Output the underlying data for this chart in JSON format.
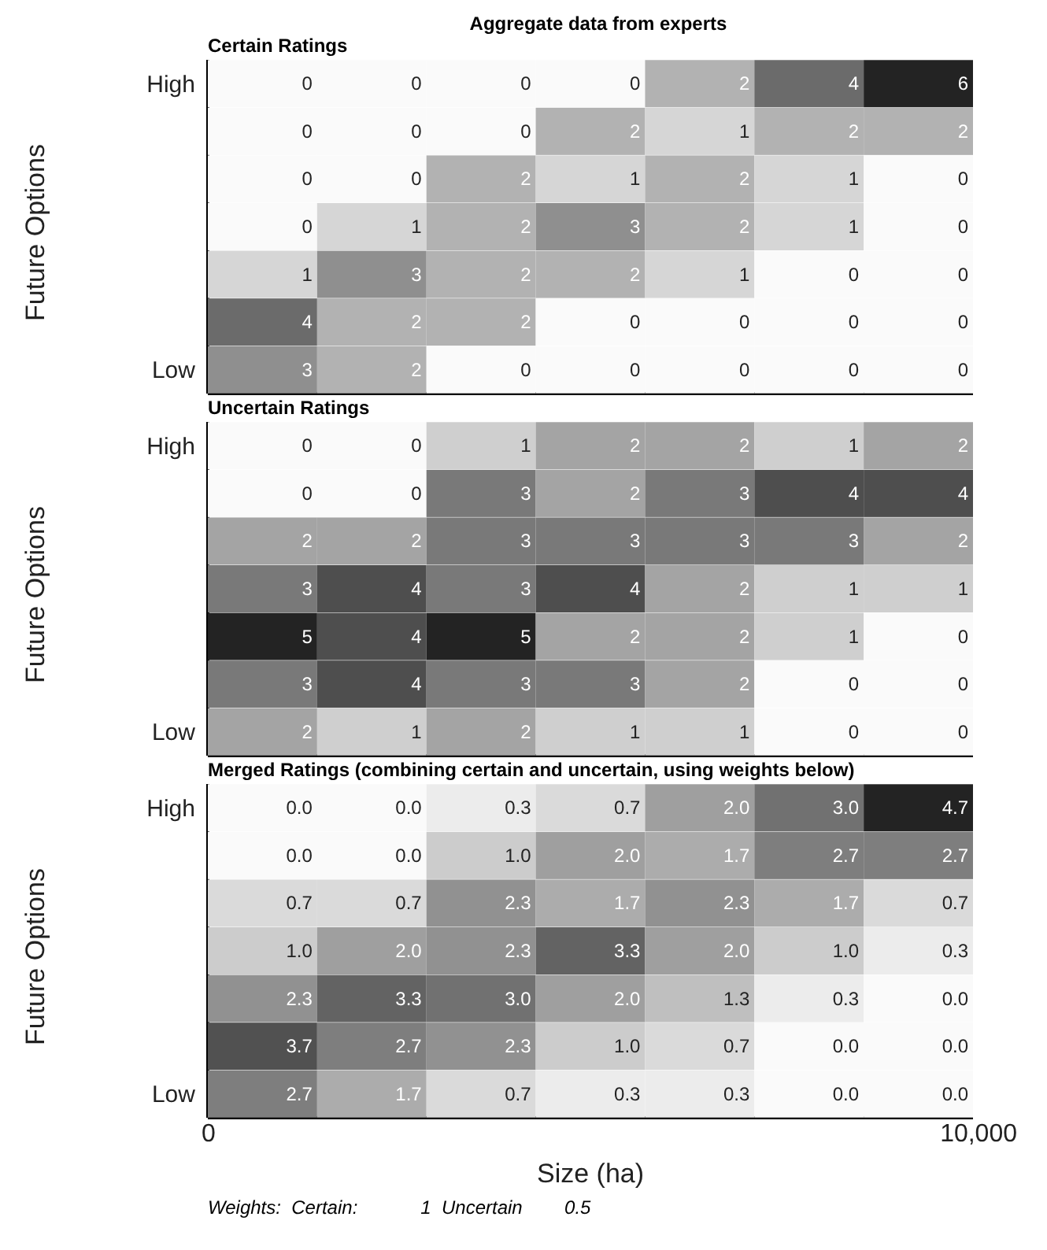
{
  "chart_data": [
    {
      "type": "heatmap",
      "title": "Aggregate data from experts",
      "subtitle": "Certain Ratings",
      "ylabel": "Future Options",
      "categories": [
        null,
        null,
        null,
        null,
        null,
        null,
        null
      ],
      "y_categories": [
        "High",
        null,
        null,
        null,
        null,
        null,
        "Low"
      ],
      "data_labels": true,
      "cells": [
        [
          0,
          0,
          0,
          0,
          2,
          4,
          6
        ],
        [
          0,
          0,
          0,
          2,
          1,
          2,
          2
        ],
        [
          0,
          0,
          2,
          1,
          2,
          1,
          0
        ],
        [
          0,
          1,
          2,
          3,
          2,
          1,
          0
        ],
        [
          1,
          3,
          2,
          2,
          1,
          0,
          0
        ],
        [
          4,
          2,
          2,
          0,
          0,
          0,
          0
        ],
        [
          3,
          2,
          0,
          0,
          0,
          0,
          0
        ]
      ]
    },
    {
      "type": "heatmap",
      "title": "Uncertain Ratings",
      "ylabel": "Future Options",
      "categories": [
        null,
        null,
        null,
        null,
        null,
        null,
        null
      ],
      "y_categories": [
        "High",
        null,
        null,
        null,
        null,
        null,
        "Low"
      ],
      "data_labels": true,
      "cells": [
        [
          0,
          0,
          1,
          2,
          2,
          1,
          2
        ],
        [
          0,
          0,
          3,
          2,
          3,
          4,
          4
        ],
        [
          2,
          2,
          3,
          3,
          3,
          3,
          2
        ],
        [
          3,
          4,
          3,
          4,
          2,
          1,
          1
        ],
        [
          5,
          4,
          5,
          2,
          2,
          1,
          0
        ],
        [
          3,
          4,
          3,
          3,
          2,
          0,
          0
        ],
        [
          2,
          1,
          2,
          1,
          1,
          0,
          0
        ]
      ]
    },
    {
      "type": "heatmap",
      "title": "Merged Ratings (combining certain and uncertain, using weights below)",
      "ylabel": "Future Options",
      "xlabel": "Size (ha)",
      "categories": [
        null,
        null,
        null,
        null,
        null,
        null,
        null
      ],
      "y_categories": [
        "High",
        null,
        null,
        null,
        null,
        null,
        "Low"
      ],
      "data_labels": true,
      "cells": [
        [
          0,
          0,
          0.3,
          0.7,
          2,
          3,
          4.7
        ],
        [
          0,
          0,
          1,
          2,
          1.7,
          2.7,
          2.7
        ],
        [
          0.7,
          0.7,
          2.3,
          1.7,
          2.3,
          1.7,
          0.7
        ],
        [
          1,
          2,
          2.3,
          3.3,
          2,
          1,
          0.3
        ],
        [
          2.3,
          3.3,
          3,
          2,
          1.3,
          0.3,
          0
        ],
        [
          3.7,
          2.7,
          2.3,
          1,
          0.7,
          0,
          0
        ],
        [
          2.7,
          1.7,
          0.7,
          0.3,
          0.3,
          0,
          0
        ]
      ],
      "cell_labels": [
        [
          "0.0",
          "0.0",
          "0.3",
          "0.7",
          "2.0",
          "3.0",
          "4.7"
        ],
        [
          "0.0",
          "0.0",
          "1.0",
          "2.0",
          "1.7",
          "2.7",
          "2.7"
        ],
        [
          "0.7",
          "0.7",
          "2.3",
          "1.7",
          "2.3",
          "1.7",
          "0.7"
        ],
        [
          "1.0",
          "2.0",
          "2.3",
          "3.3",
          "2.0",
          "1.0",
          "0.3"
        ],
        [
          "2.3",
          "3.3",
          "3.0",
          "2.0",
          "1.3",
          "0.3",
          "0.0"
        ],
        [
          "3.7",
          "2.7",
          "2.3",
          "1.0",
          "0.7",
          "0.0",
          "0.0"
        ],
        [
          "2.7",
          "1.7",
          "0.7",
          "0.3",
          "0.3",
          "0.0",
          "0.0"
        ]
      ],
      "annotations": [
        "0",
        "10,000",
        "Weights:  Certain:            1  Uncertain        0.5"
      ]
    }
  ]
}
